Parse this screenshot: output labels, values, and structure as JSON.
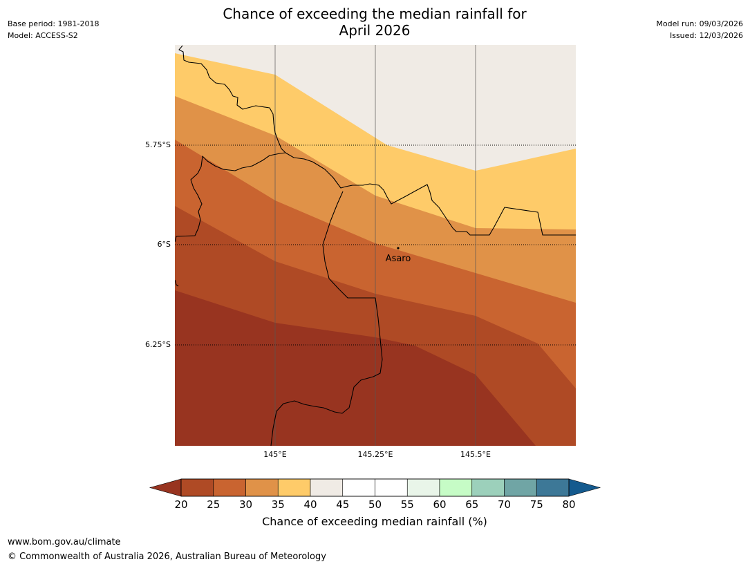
{
  "header": {
    "title_line1": "Chance of exceeding the median rainfall for",
    "title_line2": "April 2026",
    "base_period": "Base period: 1981-2018",
    "model": "Model: ACCESS-S2",
    "model_run": "Model run: 09/03/2026",
    "issued": "Issued: 12/03/2026"
  },
  "map": {
    "lat_labels": [
      "5.75°S",
      "6°S",
      "6.25°S"
    ],
    "lon_labels": [
      "145°E",
      "145.25°E",
      "145.5°E"
    ],
    "place_label": "Asaro"
  },
  "colorbar": {
    "ticks": [
      "20",
      "25",
      "30",
      "35",
      "40",
      "45",
      "50",
      "55",
      "60",
      "65",
      "70",
      "75",
      "80"
    ],
    "colors": [
      "#983420",
      "#af4a25",
      "#c96430",
      "#e09248",
      "#fecb69",
      "#f0ebe5",
      "#ffffff",
      "#ffffff",
      "#e9f5e9",
      "#c6fcc6",
      "#9cd0bb",
      "#70a5a5",
      "#3d7897",
      "#145a8e"
    ],
    "title": "Chance of exceeding median rainfall (%)"
  },
  "footer": {
    "url": "www.bom.gov.au/climate",
    "copyright": "© Commonwealth of Australia 2026, Australian Bureau of Meteorology"
  }
}
